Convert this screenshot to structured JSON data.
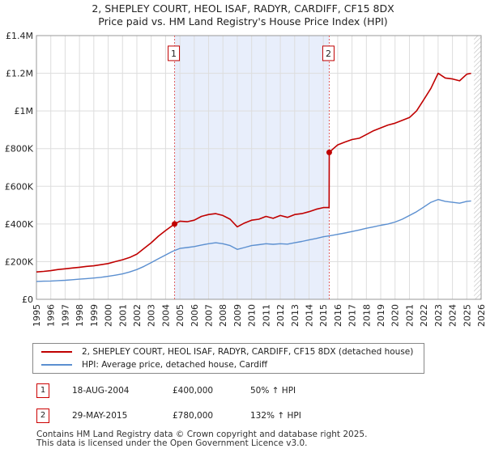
{
  "title_line1": "2, SHEPLEY COURT, HEOL ISAF, RADYR, CARDIFF, CF15 8DX",
  "title_line2": "Price paid vs. HM Land Registry's House Price Index (HPI)",
  "chart_data": {
    "type": "line",
    "title": "2, SHEPLEY COURT, HEOL ISAF, RADYR, CARDIFF, CF15 8DX - Price paid vs. HM Land Registry's House Price Index (HPI)",
    "xlim": [
      1995,
      2026
    ],
    "ylim": [
      0,
      1400000
    ],
    "x_ticks": [
      1995,
      1996,
      1997,
      1998,
      1999,
      2000,
      2001,
      2002,
      2003,
      2004,
      2005,
      2006,
      2007,
      2008,
      2009,
      2010,
      2011,
      2012,
      2013,
      2014,
      2015,
      2016,
      2017,
      2018,
      2019,
      2020,
      2021,
      2022,
      2023,
      2024,
      2025,
      2026
    ],
    "y_ticks": [
      {
        "value": 0,
        "label": "£0"
      },
      {
        "value": 200000,
        "label": "£200K"
      },
      {
        "value": 400000,
        "label": "£400K"
      },
      {
        "value": 600000,
        "label": "£600K"
      },
      {
        "value": 800000,
        "label": "£800K"
      },
      {
        "value": 1000000,
        "label": "£1M"
      },
      {
        "value": 1200000,
        "label": "£1.2M"
      },
      {
        "value": 1400000,
        "label": "£1.4M"
      }
    ],
    "grid": true,
    "colors": {
      "property": "#c00000",
      "hpi": "#5b8fd0",
      "shade": "#e8eefb",
      "hatch": "#bbbbbb",
      "vline": "#e06060"
    },
    "shaded_range": [
      2004.63,
      2015.41
    ],
    "hatched_from": 2025.5,
    "series": [
      {
        "name": "2, SHEPLEY COURT, HEOL ISAF, RADYR, CARDIFF, CF15 8DX (detached house)",
        "key": "property",
        "x": [
          1995.0,
          1995.5,
          1996.0,
          1996.5,
          1997.0,
          1997.5,
          1998.0,
          1998.5,
          1999.0,
          1999.5,
          2000.0,
          2000.5,
          2001.0,
          2001.5,
          2002.0,
          2002.5,
          2003.0,
          2003.5,
          2004.0,
          2004.63,
          2005.0,
          2005.5,
          2006.0,
          2006.5,
          2007.0,
          2007.5,
          2008.0,
          2008.5,
          2009.0,
          2009.5,
          2010.0,
          2010.5,
          2011.0,
          2011.5,
          2012.0,
          2012.5,
          2013.0,
          2013.5,
          2014.0,
          2014.5,
          2015.0,
          2015.4,
          2015.41,
          2015.7,
          2016.0,
          2016.5,
          2017.0,
          2017.5,
          2018.0,
          2018.5,
          2019.0,
          2019.5,
          2020.0,
          2020.5,
          2021.0,
          2021.5,
          2022.0,
          2022.5,
          2023.0,
          2023.5,
          2024.0,
          2024.5,
          2025.0,
          2025.3
        ],
        "y": [
          145000,
          148000,
          152000,
          158000,
          162000,
          166000,
          170000,
          175000,
          178000,
          184000,
          190000,
          200000,
          210000,
          222000,
          240000,
          270000,
          300000,
          335000,
          365000,
          400000,
          415000,
          412000,
          420000,
          440000,
          450000,
          455000,
          445000,
          425000,
          385000,
          405000,
          420000,
          425000,
          440000,
          430000,
          445000,
          435000,
          450000,
          455000,
          465000,
          478000,
          487000,
          487000,
          780000,
          800000,
          820000,
          835000,
          848000,
          855000,
          875000,
          895000,
          910000,
          925000,
          935000,
          950000,
          965000,
          1000000,
          1060000,
          1120000,
          1200000,
          1175000,
          1170000,
          1160000,
          1195000,
          1200000
        ]
      },
      {
        "name": "HPI: Average price, detached house, Cardiff",
        "key": "hpi",
        "x": [
          1995.0,
          1995.5,
          1996.0,
          1996.5,
          1997.0,
          1997.5,
          1998.0,
          1998.5,
          1999.0,
          1999.5,
          2000.0,
          2000.5,
          2001.0,
          2001.5,
          2002.0,
          2002.5,
          2003.0,
          2003.5,
          2004.0,
          2004.5,
          2005.0,
          2005.5,
          2006.0,
          2006.5,
          2007.0,
          2007.5,
          2008.0,
          2008.5,
          2009.0,
          2009.5,
          2010.0,
          2010.5,
          2011.0,
          2011.5,
          2012.0,
          2012.5,
          2013.0,
          2013.5,
          2014.0,
          2014.5,
          2015.0,
          2015.5,
          2016.0,
          2016.5,
          2017.0,
          2017.5,
          2018.0,
          2018.5,
          2019.0,
          2019.5,
          2020.0,
          2020.5,
          2021.0,
          2021.5,
          2022.0,
          2022.5,
          2023.0,
          2023.5,
          2024.0,
          2024.5,
          2025.0,
          2025.3
        ],
        "y": [
          95000,
          96000,
          97000,
          99000,
          101000,
          104000,
          107000,
          110000,
          113000,
          117000,
          122000,
          128000,
          135000,
          145000,
          158000,
          175000,
          195000,
          215000,
          235000,
          255000,
          270000,
          275000,
          280000,
          288000,
          295000,
          300000,
          295000,
          285000,
          265000,
          275000,
          285000,
          290000,
          295000,
          292000,
          295000,
          293000,
          300000,
          307000,
          315000,
          323000,
          332000,
          338000,
          345000,
          352000,
          360000,
          368000,
          377000,
          385000,
          393000,
          400000,
          410000,
          425000,
          445000,
          465000,
          490000,
          515000,
          530000,
          520000,
          515000,
          510000,
          520000,
          522000
        ]
      }
    ],
    "markers": [
      {
        "label": "1",
        "x": 2004.63,
        "y": 400000
      },
      {
        "label": "2",
        "x": 2015.41,
        "y": 780000
      }
    ],
    "marker_label_y": 1250000
  },
  "legend": {
    "property_label": "2, SHEPLEY COURT, HEOL ISAF, RADYR, CARDIFF, CF15 8DX (detached house)",
    "hpi_label": "HPI: Average price, detached house, Cardiff"
  },
  "sales": [
    {
      "num": "1",
      "date": "18-AUG-2004",
      "price": "£400,000",
      "hpi": "50% ↑ HPI"
    },
    {
      "num": "2",
      "date": "29-MAY-2015",
      "price": "£780,000",
      "hpi": "132% ↑ HPI"
    }
  ],
  "footer": {
    "line1": "Contains HM Land Registry data © Crown copyright and database right 2025.",
    "line2": "This data is licensed under the Open Government Licence v3.0."
  }
}
